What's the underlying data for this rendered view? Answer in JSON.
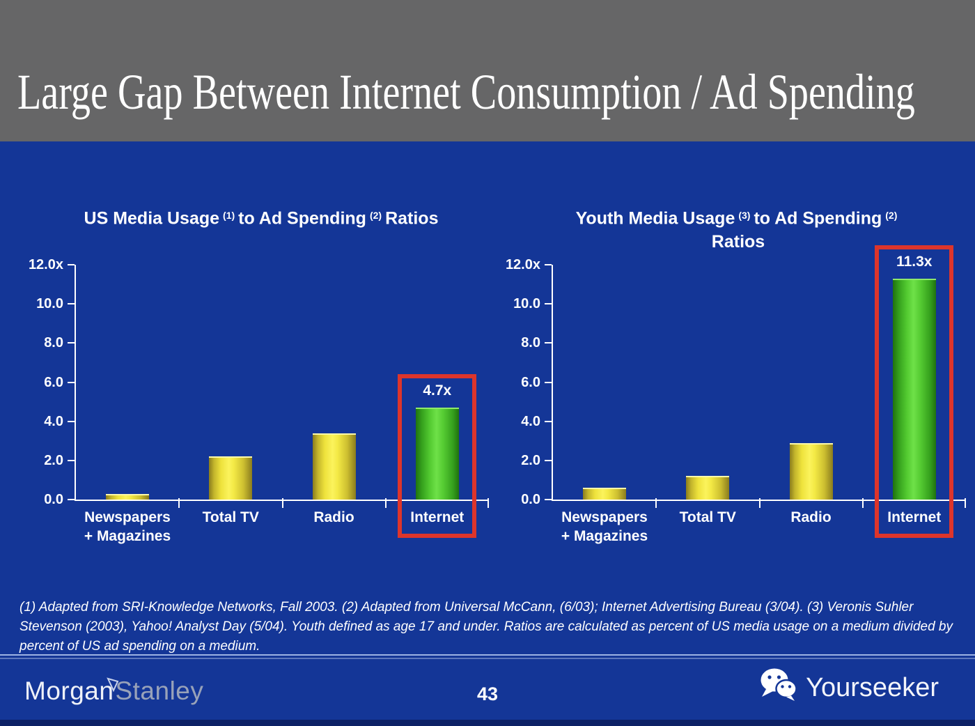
{
  "slide": {
    "title": "Large Gap Between Internet Consumption / Ad Spending",
    "page_number": "43",
    "watermark": "Yourseeker",
    "brand": {
      "part1": "Morgan",
      "part2": "Stanley"
    },
    "footnote": "(1) Adapted from SRI-Knowledge Networks, Fall 2003.  (2) Adapted from Universal McCann, (6/03); Internet Advertising Bureau (3/04). (3) Veronis Suhler Stevenson (2003), Yahoo! Analyst Day (5/04).  Youth defined as age 17 and under.  Ratios are calculated as percent of US media usage on a medium divided by percent of US ad spending on a medium.",
    "colors": {
      "background_blue": "#143697",
      "header_gray": "#666667",
      "bar_yellow": "#F2E83E",
      "bar_green": "#54C832",
      "highlight_red": "#DD352B",
      "text_white": "#FFFFFF",
      "divider_blue": "#9DB3E3",
      "bottom_strip_navy": "#0D2166"
    }
  },
  "chart_data": [
    {
      "type": "bar",
      "title": "US Media Usage (1) to Ad Spending (2) Ratios",
      "title_parts": {
        "a": "US Media Usage",
        "sup1": "(1)",
        "b": "to Ad Spending",
        "sup2": "(2)",
        "c": "Ratios",
        "line2": ""
      },
      "categories": [
        "Newspapers + Magazines",
        "Total TV",
        "Radio",
        "Internet"
      ],
      "category_lines": [
        [
          "Newspapers",
          "+ Magazines"
        ],
        [
          "Total TV",
          ""
        ],
        [
          "Radio",
          ""
        ],
        [
          "Internet",
          ""
        ]
      ],
      "values": [
        0.3,
        2.2,
        3.4,
        4.7
      ],
      "bar_colors": [
        "yellow",
        "yellow",
        "yellow",
        "green"
      ],
      "value_labels": [
        "",
        "",
        "",
        "4.7x"
      ],
      "highlighted_index": 3,
      "highlight": {
        "category": "Internet",
        "label": "4.7x"
      },
      "yticks": [
        "12.0x",
        "10.0",
        "8.0",
        "6.0",
        "4.0",
        "2.0",
        "0.0"
      ],
      "ylim": [
        0,
        12
      ],
      "grid": false,
      "legend": null,
      "xlabel": "",
      "ylabel": ""
    },
    {
      "type": "bar",
      "title": "Youth Media Usage (3) to Ad Spending (2) Ratios",
      "title_parts": {
        "a": "Youth Media Usage",
        "sup1": "(3)",
        "b": "to Ad Spending",
        "sup2": "(2)",
        "c": "",
        "line2": "Ratios"
      },
      "categories": [
        "Newspapers + Magazines",
        "Total TV",
        "Radio",
        "Internet"
      ],
      "category_lines": [
        [
          "Newspapers",
          "+ Magazines"
        ],
        [
          "Total TV",
          ""
        ],
        [
          "Radio",
          ""
        ],
        [
          "Internet",
          ""
        ]
      ],
      "values": [
        0.6,
        1.2,
        2.9,
        11.3
      ],
      "bar_colors": [
        "yellow",
        "yellow",
        "yellow",
        "green"
      ],
      "value_labels": [
        "",
        "",
        "",
        "11.3x"
      ],
      "highlighted_index": 3,
      "highlight": {
        "category": "Internet",
        "label": "11.3x"
      },
      "yticks": [
        "12.0x",
        "10.0",
        "8.0",
        "6.0",
        "4.0",
        "2.0",
        "0.0"
      ],
      "ylim": [
        0,
        12
      ],
      "grid": false,
      "legend": null,
      "xlabel": "",
      "ylabel": ""
    }
  ]
}
